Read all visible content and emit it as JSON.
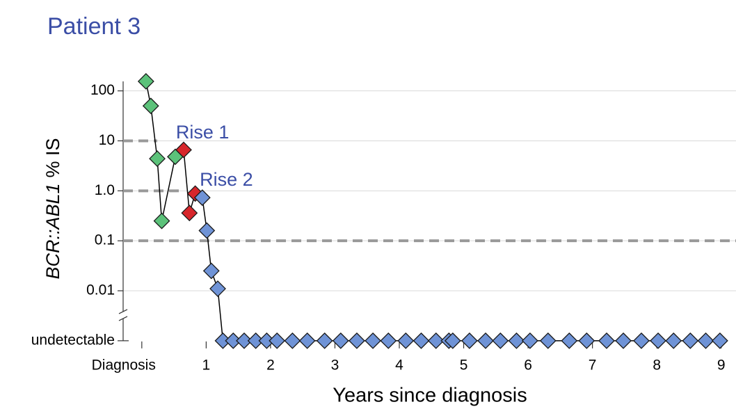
{
  "chart_data": {
    "type": "scatter",
    "title": "Patient 3",
    "x_label": "Years since diagnosis",
    "y_label": {
      "gene": "BCR::ABL1",
      "unit": "% IS"
    },
    "log_y": true,
    "connect": true,
    "line_color": "#000000",
    "xlim": [
      -0.29,
      9.23
    ],
    "xticks": [
      {
        "value": 0,
        "label": "Diagnosis"
      },
      1,
      2,
      3,
      4,
      5,
      6,
      7,
      8,
      9
    ],
    "ylim": [
      0.0007,
      200
    ],
    "yticks": [
      {
        "value": 0.001,
        "label": "undetectable"
      },
      0.01,
      0.1,
      {
        "value": 1,
        "label": "1.0"
      },
      10,
      100
    ],
    "grid": true,
    "reference_lines": [
      {
        "value": 10,
        "xmax": 0.24
      },
      {
        "value": 1,
        "xmax": 0.63
      },
      {
        "value": 0.1,
        "xmax": 9.23
      }
    ],
    "annotations": [
      {
        "text": "Rise 1",
        "x": 0.53,
        "y": 14
      },
      {
        "text": "Rise 2",
        "x": 0.9,
        "y": 1.6
      }
    ],
    "series": [
      {
        "color": "#5cc27a",
        "x": [
          0.065,
          0.14,
          0.24,
          0.31,
          0.52
        ],
        "values": [
          155,
          50,
          4.4,
          0.25,
          4.8
        ]
      },
      {
        "color": "#d7262b",
        "x": [
          0.65,
          0.74,
          0.83
        ],
        "values": [
          6.6,
          0.36,
          0.88
        ]
      },
      {
        "color": "#6f93d6",
        "x": [
          0.94,
          1.01,
          1.08,
          1.18,
          1.26,
          1.42,
          1.59,
          1.77,
          1.94,
          2.1,
          2.34,
          2.57,
          2.84,
          3.09,
          3.34,
          3.59,
          3.83,
          4.1,
          4.34,
          4.57,
          4.77,
          4.83,
          5.09,
          5.34,
          5.57,
          5.82,
          6.03,
          6.31,
          6.64,
          6.91,
          7.22,
          7.48,
          7.76,
          8.02,
          8.26,
          8.52,
          8.76,
          8.98
        ],
        "values": [
          0.73,
          0.16,
          0.025,
          0.011,
          0.001,
          0.001,
          0.001,
          0.001,
          0.001,
          0.001,
          0.001,
          0.001,
          0.001,
          0.001,
          0.001,
          0.001,
          0.001,
          0.001,
          0.001,
          0.001,
          0.001,
          0.001,
          0.001,
          0.001,
          0.001,
          0.001,
          0.001,
          0.001,
          0.001,
          0.001,
          0.001,
          0.001,
          0.001,
          0.001,
          0.001,
          0.001,
          0.001,
          0.001
        ]
      }
    ]
  }
}
